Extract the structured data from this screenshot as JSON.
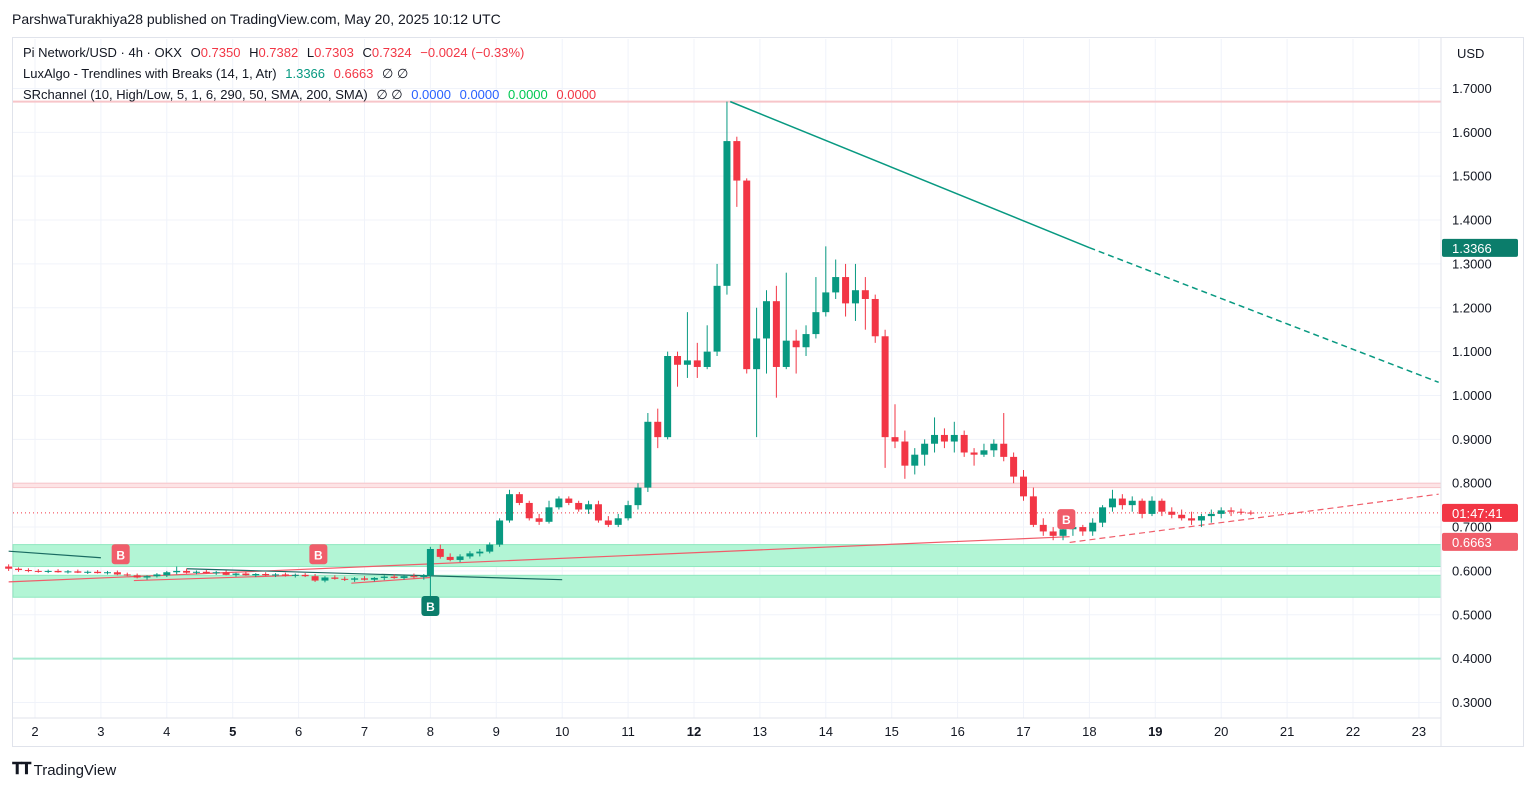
{
  "header": {
    "publisher_line": "ParshwaTurakhiya28 published on TradingView.com, May 20, 2025 10:12 UTC"
  },
  "legend": {
    "symbol": "Pi Network/USD · 4h · OKX",
    "open_label": "O",
    "open": "0.7350",
    "high_label": "H",
    "high": "0.7382",
    "low_label": "L",
    "low": "0.7303",
    "close_label": "C",
    "close": "0.7324",
    "change": "−0.0024 (−0.33%)",
    "indicator1": "LuxAlgo - Trendlines with Breaks (14, 1, Atr)",
    "indicator1_v1": "1.3366",
    "indicator1_v2": "0.6663",
    "indicator1_na": "∅  ∅",
    "indicator2": "SRchannel (10, High/Low, 5, 1, 6, 290, 50, SMA, 200, SMA)",
    "indicator2_na": "∅  ∅",
    "indicator2_v1": "0.0000",
    "indicator2_v2": "0.0000",
    "indicator2_v3": "0.0000",
    "indicator2_v4": "0.0000"
  },
  "axis": {
    "currency": "USD"
  },
  "price_labels": {
    "upper_trendline": "1.3366",
    "countdown": "01:47:41",
    "lower_trendline": "0.6663"
  },
  "footer": {
    "brand": "TradingView"
  },
  "colors": {
    "up": "#089981",
    "down": "#f23645",
    "zone": "#b2f5d5",
    "resistance": "#f7c5c9"
  },
  "chart_data": {
    "type": "candlestick",
    "yaxis": {
      "ticks": [
        "0.3000",
        "0.4000",
        "0.5000",
        "0.6000",
        "0.7000",
        "0.8000",
        "0.9000",
        "1.0000",
        "1.1000",
        "1.2000",
        "1.3000",
        "1.4000",
        "1.5000",
        "1.6000",
        "1.7000"
      ],
      "range": [
        0.25,
        1.78
      ]
    },
    "xaxis": {
      "ticks": [
        "2",
        "3",
        "4",
        "5",
        "6",
        "7",
        "8",
        "9",
        "10",
        "11",
        "12",
        "13",
        "14",
        "15",
        "16",
        "17",
        "18",
        "19",
        "20",
        "21",
        "22",
        "23"
      ],
      "bold": [
        "5",
        "12",
        "19"
      ]
    },
    "last_price": 0.7324,
    "zones": [
      {
        "from": 0.79,
        "to": 0.8,
        "kind": "resistance"
      },
      {
        "from": 0.61,
        "to": 0.66,
        "kind": "support"
      },
      {
        "from": 0.54,
        "to": 0.59,
        "kind": "support"
      }
    ],
    "levels": [
      {
        "price": 1.67,
        "kind": "resistance"
      },
      {
        "price": 0.4,
        "kind": "support"
      }
    ],
    "candles": [
      [
        1.6,
        0.61,
        0.615,
        0.6,
        0.605
      ],
      [
        1.75,
        0.605,
        0.608,
        0.598,
        0.602
      ],
      [
        1.9,
        0.602,
        0.606,
        0.597,
        0.6
      ],
      [
        2.05,
        0.6,
        0.604,
        0.596,
        0.598
      ],
      [
        2.2,
        0.598,
        0.603,
        0.595,
        0.6
      ],
      [
        2.35,
        0.6,
        0.604,
        0.596,
        0.597
      ],
      [
        2.5,
        0.597,
        0.602,
        0.594,
        0.599
      ],
      [
        2.65,
        0.599,
        0.603,
        0.595,
        0.596
      ],
      [
        2.8,
        0.596,
        0.601,
        0.593,
        0.598
      ],
      [
        2.95,
        0.598,
        0.602,
        0.594,
        0.595
      ],
      [
        3.1,
        0.595,
        0.6,
        0.592,
        0.597
      ],
      [
        3.25,
        0.597,
        0.601,
        0.59,
        0.592
      ],
      [
        3.4,
        0.592,
        0.596,
        0.588,
        0.59
      ],
      [
        3.55,
        0.59,
        0.594,
        0.583,
        0.585
      ],
      [
        3.7,
        0.585,
        0.59,
        0.58,
        0.588
      ],
      [
        3.85,
        0.588,
        0.595,
        0.585,
        0.592
      ],
      [
        4.0,
        0.59,
        0.6,
        0.586,
        0.597
      ],
      [
        4.15,
        0.597,
        0.61,
        0.592,
        0.6
      ],
      [
        4.3,
        0.6,
        0.605,
        0.594,
        0.596
      ],
      [
        4.45,
        0.596,
        0.601,
        0.592,
        0.598
      ],
      [
        4.6,
        0.598,
        0.602,
        0.594,
        0.595
      ],
      [
        4.75,
        0.595,
        0.6,
        0.591,
        0.597
      ],
      [
        4.9,
        0.597,
        0.601,
        0.59,
        0.591
      ],
      [
        5.05,
        0.591,
        0.596,
        0.587,
        0.594
      ],
      [
        5.2,
        0.594,
        0.598,
        0.589,
        0.59
      ],
      [
        5.35,
        0.59,
        0.595,
        0.586,
        0.593
      ],
      [
        5.5,
        0.593,
        0.597,
        0.588,
        0.59
      ],
      [
        5.65,
        0.59,
        0.595,
        0.586,
        0.592
      ],
      [
        5.8,
        0.592,
        0.596,
        0.587,
        0.589
      ],
      [
        5.95,
        0.589,
        0.594,
        0.585,
        0.591
      ],
      [
        6.1,
        0.591,
        0.595,
        0.586,
        0.588
      ],
      [
        6.25,
        0.588,
        0.593,
        0.575,
        0.578
      ],
      [
        6.4,
        0.578,
        0.588,
        0.574,
        0.585
      ],
      [
        6.55,
        0.585,
        0.59,
        0.58,
        0.582
      ],
      [
        6.7,
        0.582,
        0.587,
        0.577,
        0.58
      ],
      [
        6.85,
        0.58,
        0.586,
        0.575,
        0.583
      ],
      [
        7.0,
        0.583,
        0.588,
        0.578,
        0.58
      ],
      [
        7.15,
        0.58,
        0.586,
        0.576,
        0.584
      ],
      [
        7.3,
        0.584,
        0.59,
        0.579,
        0.587
      ],
      [
        7.45,
        0.587,
        0.592,
        0.582,
        0.584
      ],
      [
        7.6,
        0.584,
        0.59,
        0.58,
        0.588
      ],
      [
        7.75,
        0.588,
        0.594,
        0.583,
        0.586
      ],
      [
        7.9,
        0.586,
        0.593,
        0.58,
        0.59
      ],
      [
        8.0,
        0.59,
        0.655,
        0.54,
        0.65
      ],
      [
        8.15,
        0.65,
        0.66,
        0.628,
        0.632
      ],
      [
        8.3,
        0.632,
        0.64,
        0.622,
        0.625
      ],
      [
        8.45,
        0.625,
        0.638,
        0.62,
        0.633
      ],
      [
        8.6,
        0.633,
        0.645,
        0.628,
        0.64
      ],
      [
        8.75,
        0.64,
        0.65,
        0.633,
        0.644
      ],
      [
        8.9,
        0.644,
        0.665,
        0.64,
        0.66
      ],
      [
        9.05,
        0.66,
        0.72,
        0.655,
        0.715
      ],
      [
        9.2,
        0.715,
        0.785,
        0.71,
        0.775
      ],
      [
        9.35,
        0.775,
        0.78,
        0.75,
        0.755
      ],
      [
        9.5,
        0.755,
        0.76,
        0.715,
        0.72
      ],
      [
        9.65,
        0.72,
        0.73,
        0.705,
        0.712
      ],
      [
        9.8,
        0.712,
        0.76,
        0.708,
        0.745
      ],
      [
        9.95,
        0.745,
        0.77,
        0.74,
        0.765
      ],
      [
        10.1,
        0.765,
        0.77,
        0.75,
        0.755
      ],
      [
        10.25,
        0.755,
        0.76,
        0.735,
        0.74
      ],
      [
        10.4,
        0.74,
        0.76,
        0.73,
        0.752
      ],
      [
        10.55,
        0.752,
        0.76,
        0.71,
        0.715
      ],
      [
        10.7,
        0.715,
        0.725,
        0.7,
        0.705
      ],
      [
        10.85,
        0.705,
        0.73,
        0.7,
        0.72
      ],
      [
        11.0,
        0.72,
        0.76,
        0.715,
        0.75
      ],
      [
        11.15,
        0.75,
        0.8,
        0.74,
        0.79
      ],
      [
        11.3,
        0.79,
        0.96,
        0.78,
        0.94
      ],
      [
        11.45,
        0.94,
        0.97,
        0.88,
        0.905
      ],
      [
        11.6,
        0.905,
        1.1,
        0.9,
        1.09
      ],
      [
        11.75,
        1.09,
        1.1,
        1.02,
        1.07
      ],
      [
        11.9,
        1.07,
        1.19,
        1.04,
        1.08
      ],
      [
        12.05,
        1.08,
        1.12,
        1.04,
        1.065
      ],
      [
        12.2,
        1.065,
        1.16,
        1.06,
        1.1
      ],
      [
        12.35,
        1.1,
        1.3,
        1.09,
        1.25
      ],
      [
        12.5,
        1.25,
        1.67,
        1.23,
        1.58
      ],
      [
        12.65,
        1.58,
        1.59,
        1.43,
        1.49
      ],
      [
        12.8,
        1.49,
        1.495,
        1.05,
        1.06
      ],
      [
        12.95,
        1.06,
        1.2,
        0.905,
        1.13
      ],
      [
        13.1,
        1.13,
        1.24,
        1.05,
        1.215
      ],
      [
        13.25,
        1.215,
        1.25,
        0.995,
        1.065
      ],
      [
        13.4,
        1.065,
        1.28,
        1.06,
        1.125
      ],
      [
        13.55,
        1.125,
        1.15,
        1.05,
        1.11
      ],
      [
        13.7,
        1.11,
        1.16,
        1.09,
        1.14
      ],
      [
        13.85,
        1.14,
        1.27,
        1.13,
        1.19
      ],
      [
        14.0,
        1.19,
        1.34,
        1.18,
        1.235
      ],
      [
        14.15,
        1.235,
        1.31,
        1.22,
        1.27
      ],
      [
        14.3,
        1.27,
        1.3,
        1.18,
        1.21
      ],
      [
        14.45,
        1.21,
        1.3,
        1.17,
        1.24
      ],
      [
        14.6,
        1.24,
        1.27,
        1.15,
        1.22
      ],
      [
        14.75,
        1.22,
        1.23,
        1.12,
        1.135
      ],
      [
        14.9,
        1.135,
        1.15,
        0.835,
        0.905
      ],
      [
        15.05,
        0.905,
        0.98,
        0.88,
        0.895
      ],
      [
        15.2,
        0.895,
        0.92,
        0.81,
        0.84
      ],
      [
        15.35,
        0.84,
        0.88,
        0.82,
        0.865
      ],
      [
        15.5,
        0.865,
        0.9,
        0.84,
        0.89
      ],
      [
        15.65,
        0.89,
        0.95,
        0.87,
        0.91
      ],
      [
        15.8,
        0.91,
        0.925,
        0.88,
        0.895
      ],
      [
        15.95,
        0.895,
        0.94,
        0.87,
        0.91
      ],
      [
        16.1,
        0.91,
        0.92,
        0.86,
        0.87
      ],
      [
        16.25,
        0.87,
        0.88,
        0.84,
        0.865
      ],
      [
        16.4,
        0.865,
        0.89,
        0.86,
        0.875
      ],
      [
        16.55,
        0.875,
        0.9,
        0.86,
        0.89
      ],
      [
        16.7,
        0.89,
        0.96,
        0.85,
        0.86
      ],
      [
        16.85,
        0.86,
        0.87,
        0.8,
        0.815
      ],
      [
        17.0,
        0.815,
        0.83,
        0.76,
        0.77
      ],
      [
        17.15,
        0.77,
        0.79,
        0.7,
        0.705
      ],
      [
        17.3,
        0.705,
        0.72,
        0.68,
        0.69
      ],
      [
        17.45,
        0.69,
        0.7,
        0.67,
        0.68
      ],
      [
        17.6,
        0.68,
        0.7,
        0.67,
        0.695
      ],
      [
        17.75,
        0.695,
        0.71,
        0.68,
        0.7
      ],
      [
        17.9,
        0.7,
        0.705,
        0.68,
        0.69
      ],
      [
        18.05,
        0.69,
        0.72,
        0.68,
        0.71
      ],
      [
        18.2,
        0.71,
        0.75,
        0.7,
        0.745
      ],
      [
        18.35,
        0.745,
        0.785,
        0.735,
        0.765
      ],
      [
        18.5,
        0.765,
        0.775,
        0.74,
        0.75
      ],
      [
        18.65,
        0.75,
        0.77,
        0.735,
        0.76
      ],
      [
        18.8,
        0.76,
        0.765,
        0.72,
        0.73
      ],
      [
        18.95,
        0.73,
        0.77,
        0.725,
        0.76
      ],
      [
        19.1,
        0.76,
        0.765,
        0.725,
        0.735
      ],
      [
        19.25,
        0.735,
        0.745,
        0.72,
        0.728
      ],
      [
        19.4,
        0.728,
        0.74,
        0.715,
        0.72
      ],
      [
        19.55,
        0.72,
        0.735,
        0.705,
        0.715
      ],
      [
        19.7,
        0.715,
        0.73,
        0.7,
        0.725
      ],
      [
        19.85,
        0.725,
        0.74,
        0.71,
        0.73
      ],
      [
        20.0,
        0.73,
        0.745,
        0.72,
        0.738
      ],
      [
        20.15,
        0.738,
        0.745,
        0.725,
        0.735
      ],
      [
        20.3,
        0.735,
        0.742,
        0.728,
        0.733
      ],
      [
        20.45,
        0.733,
        0.738,
        0.727,
        0.732
      ]
    ],
    "trendlines": [
      {
        "x1": 12.55,
        "y1": 1.67,
        "x2": 18.0,
        "y2": 1.337,
        "kind": "resistance",
        "style": "solid"
      },
      {
        "x1": 18.0,
        "y1": 1.337,
        "x2": 23.3,
        "y2": 1.03,
        "kind": "resistance",
        "style": "dashed"
      },
      {
        "x1": 1.6,
        "y1": 0.575,
        "x2": 17.7,
        "y2": 0.678,
        "kind": "support",
        "style": "solid"
      },
      {
        "x1": 17.7,
        "y1": 0.665,
        "x2": 23.3,
        "y2": 0.775,
        "kind": "support",
        "style": "dashed"
      },
      {
        "x1": 1.6,
        "y1": 0.645,
        "x2": 3.0,
        "y2": 0.63,
        "kind": "minor-resistance",
        "style": "solid"
      },
      {
        "x1": 4.3,
        "y1": 0.605,
        "x2": 10.0,
        "y2": 0.58,
        "kind": "minor-resistance",
        "style": "solid"
      },
      {
        "x1": 3.5,
        "y1": 0.578,
        "x2": 6.0,
        "y2": 0.59,
        "kind": "minor-support",
        "style": "solid"
      },
      {
        "x1": 6.8,
        "y1": 0.572,
        "x2": 8.0,
        "y2": 0.585,
        "kind": "minor-support",
        "style": "solid"
      }
    ],
    "markers": [
      {
        "x": 3.3,
        "price": 0.638,
        "label": "B",
        "kind": "down"
      },
      {
        "x": 6.3,
        "price": 0.638,
        "label": "B",
        "kind": "down"
      },
      {
        "x": 8.0,
        "price": 0.52,
        "label": "B",
        "kind": "up"
      },
      {
        "x": 17.65,
        "price": 0.718,
        "label": "B",
        "kind": "down"
      }
    ]
  }
}
